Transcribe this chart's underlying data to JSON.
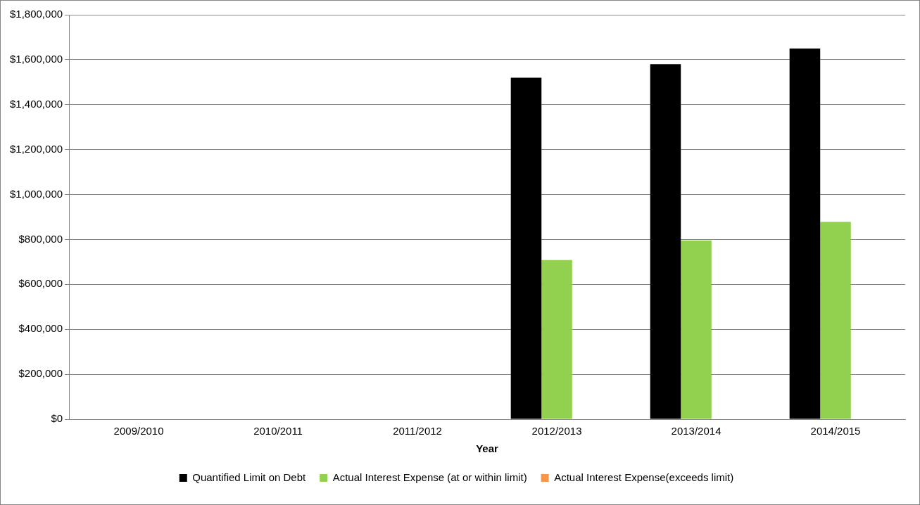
{
  "chart_data": {
    "type": "bar",
    "xlabel": "Year",
    "categories": [
      "2009/2010",
      "2010/2011",
      "2011/2012",
      "2012/2013",
      "2013/2014",
      "2014/2015"
    ],
    "series": [
      {
        "name": "Quantified Limit on Debt",
        "color": "#000000",
        "values": [
          null,
          null,
          null,
          1520000,
          1580000,
          1650000
        ]
      },
      {
        "name": "Actual Interest Expense (at or within limit)",
        "color": "#92d050",
        "values": [
          null,
          null,
          null,
          708000,
          795000,
          878000
        ]
      },
      {
        "name": "Actual Interest Expense(exceeds limit)",
        "color": "#f79646",
        "values": [
          null,
          null,
          null,
          null,
          null,
          null
        ]
      }
    ],
    "ylim": [
      0,
      1800000
    ],
    "yticks": [
      {
        "value": 0,
        "label": "$0"
      },
      {
        "value": 200000,
        "label": "$200,000"
      },
      {
        "value": 400000,
        "label": "$400,000"
      },
      {
        "value": 600000,
        "label": "$600,000"
      },
      {
        "value": 800000,
        "label": "$800,000"
      },
      {
        "value": 1000000,
        "label": "$1,000,000"
      },
      {
        "value": 1200000,
        "label": "$1,200,000"
      },
      {
        "value": 1400000,
        "label": "$1,400,000"
      },
      {
        "value": 1600000,
        "label": "$1,600,000"
      },
      {
        "value": 1800000,
        "label": "$1,800,000"
      }
    ],
    "grid": "y",
    "legend": "bottom"
  }
}
